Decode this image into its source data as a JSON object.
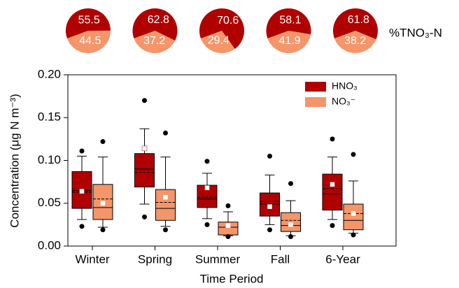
{
  "chart_data": [
    {
      "type": "box",
      "x_label": "Time Period",
      "y_label": "Concentration (μg N m⁻³)",
      "categories": [
        "Winter",
        "Spring",
        "Summer",
        "Fall",
        "6-Year"
      ],
      "ylim": [
        0,
        0.2
      ],
      "yticks": [
        {
          "value": 0,
          "label": "0.00"
        },
        {
          "value": 0.05,
          "label": "0.05"
        },
        {
          "value": 0.1,
          "label": "0.10"
        },
        {
          "value": 0.15,
          "label": "0.15"
        },
        {
          "value": 0.2,
          "label": "0.20"
        }
      ],
      "legend": "top-right",
      "series": [
        {
          "name": "HNO₃",
          "color": "#b00000",
          "whisker_low": [
            0.031,
            0.049,
            0.032,
            0.025,
            0.031
          ],
          "q1": [
            0.044,
            0.069,
            0.045,
            0.035,
            0.042
          ],
          "median": [
            0.065,
            0.09,
            0.055,
            0.052,
            0.061
          ],
          "mean": [
            0.063,
            0.086,
            0.057,
            0.049,
            0.067
          ],
          "q3": [
            0.087,
            0.108,
            0.071,
            0.062,
            0.084
          ],
          "whisker_high": [
            0.105,
            0.137,
            0.085,
            0.083,
            0.104
          ],
          "outlier_low": [
            0.023,
            0.034,
            0.025,
            0.019,
            0.024
          ],
          "outlier_high": [
            0.111,
            0.17,
            0.099,
            0.105,
            0.125
          ],
          "marker": [
            0.064,
            0.114,
            0.068,
            0.046,
            0.072
          ]
        },
        {
          "name": "NO₃⁻",
          "color": "#f4956a",
          "whisker_low": [
            0.022,
            0.023,
            0.012,
            0.012,
            0.015
          ],
          "q1": [
            0.031,
            0.03,
            0.013,
            0.017,
            0.019
          ],
          "median": [
            0.045,
            0.044,
            0.022,
            0.024,
            0.03
          ],
          "mean": [
            0.055,
            0.051,
            0.022,
            0.03,
            0.038
          ],
          "q3": [
            0.072,
            0.066,
            0.028,
            0.039,
            0.049
          ],
          "whisker_high": [
            0.104,
            0.104,
            0.04,
            0.053,
            0.076
          ],
          "outlier_low": [
            0.019,
            0.019,
            0.011,
            0.011,
            0.013
          ],
          "outlier_high": [
            0.122,
            0.132,
            0.047,
            0.073,
            0.107
          ],
          "marker": [
            0.05,
            0.057,
            0.024,
            0.025,
            0.038
          ]
        }
      ]
    },
    {
      "type": "pie",
      "label": "%TNO₃-N",
      "colors": [
        "#b00000",
        "#f4956a"
      ],
      "values": [
        [
          55.5,
          44.5
        ],
        [
          62.8,
          37.2
        ],
        [
          70.6,
          29.4
        ],
        [
          58.1,
          41.9
        ],
        [
          61.8,
          38.2
        ]
      ]
    }
  ]
}
